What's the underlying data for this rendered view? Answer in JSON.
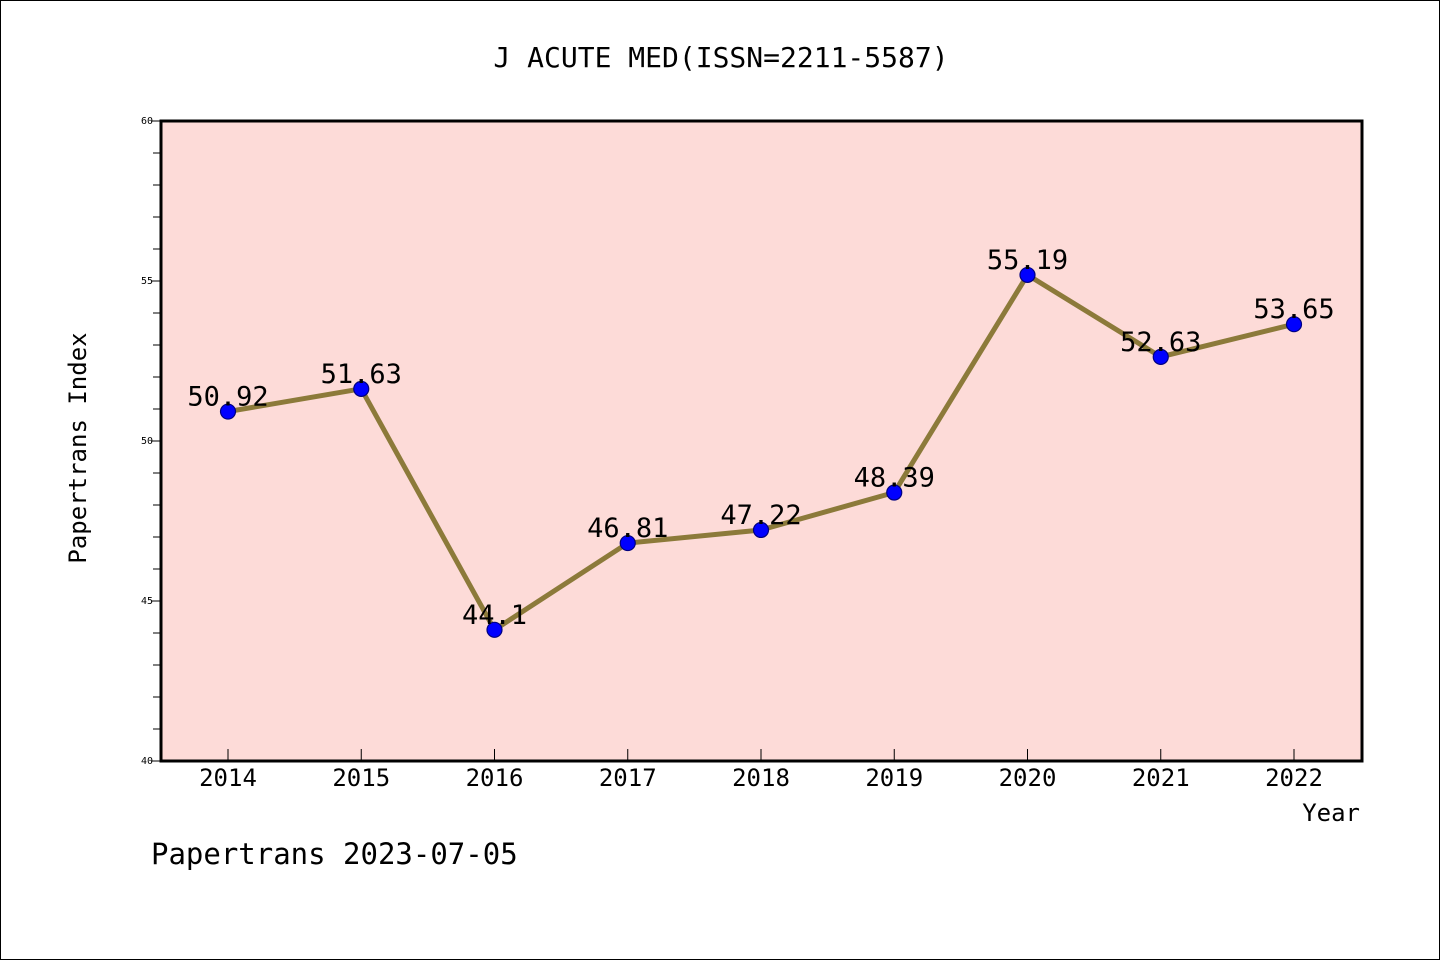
{
  "chart_data": {
    "type": "line",
    "title": "J ACUTE MED(ISSN=2211-5587)",
    "xlabel": "Year",
    "ylabel": "Papertrans Index",
    "categories": [
      "2014",
      "2015",
      "2016",
      "2017",
      "2018",
      "2019",
      "2020",
      "2021",
      "2022"
    ],
    "values": [
      50.92,
      51.63,
      44.1,
      46.81,
      47.22,
      48.39,
      55.19,
      52.63,
      53.65
    ],
    "data_labels": [
      "50.92",
      "51.63",
      "44.1",
      "46.81",
      "47.22",
      "48.39",
      "55.19",
      "52.63",
      "53.65"
    ],
    "ylim": [
      40,
      60
    ],
    "yticks": [
      "40",
      "45",
      "50",
      "55",
      "60"
    ],
    "grid": false,
    "colors": {
      "plot_background": "#fddbd8",
      "line": "#8c7a3a",
      "marker": "#0000ff",
      "marker_edge": "#000080"
    }
  },
  "footer": "Papertrans 2023-07-05"
}
